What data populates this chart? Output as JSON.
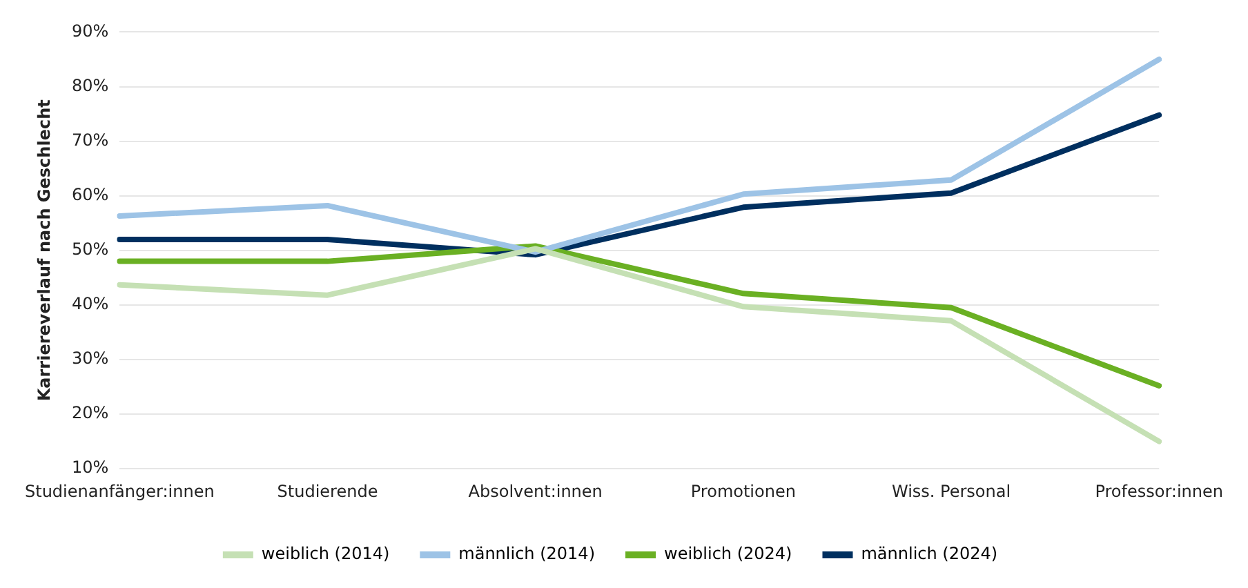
{
  "chart_data": {
    "type": "line",
    "ylabel": "Karriereverlauf nach Geschlecht",
    "categories": [
      "Studienanfänger:innen",
      "Studierende",
      "Absolvent:innen",
      "Promotionen",
      "Wiss. Personal",
      "Professor:innen"
    ],
    "series": [
      {
        "name": "weiblich (2014)",
        "color": "#c5e0b4",
        "values": [
          43.7,
          41.8,
          50.3,
          39.7,
          37.1,
          15.0
        ]
      },
      {
        "name": "männlich (2014)",
        "color": "#9dc3e6",
        "values": [
          56.3,
          58.2,
          49.7,
          60.3,
          62.9,
          85.0
        ]
      },
      {
        "name": "weiblich (2024)",
        "color": "#6ab023",
        "values": [
          48.0,
          48.0,
          50.8,
          42.1,
          39.5,
          25.2
        ]
      },
      {
        "name": "männlich (2024)",
        "color": "#002f5f",
        "values": [
          52.0,
          52.0,
          49.2,
          57.9,
          60.5,
          74.8
        ]
      }
    ],
    "ylim": [
      10,
      90
    ],
    "yticks": [
      {
        "value": 10,
        "label": "10%"
      },
      {
        "value": 20,
        "label": "20%"
      },
      {
        "value": 30,
        "label": "30%"
      },
      {
        "value": 40,
        "label": "40%"
      },
      {
        "value": 50,
        "label": "50%"
      },
      {
        "value": 60,
        "label": "60%"
      },
      {
        "value": 70,
        "label": "70%"
      },
      {
        "value": 80,
        "label": "80%"
      },
      {
        "value": 90,
        "label": "90%"
      }
    ],
    "grid": "y",
    "legend": "bottom",
    "marker": "none",
    "line_style": "solid"
  }
}
